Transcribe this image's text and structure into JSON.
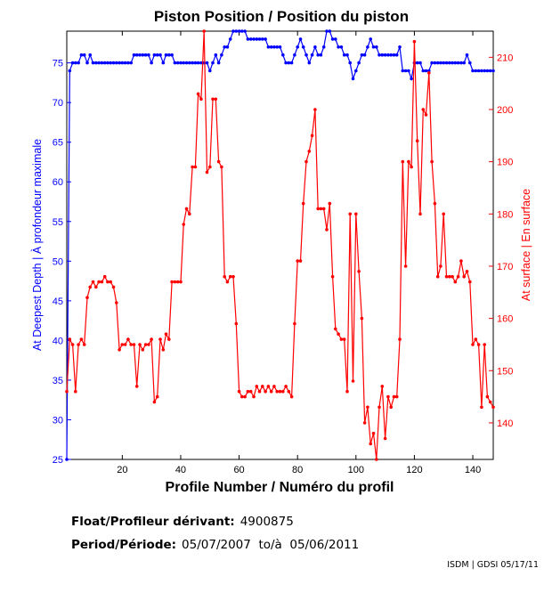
{
  "chart_data": {
    "type": "line",
    "title": "Piston Position / Position du piston",
    "xlabel": "Profile Number / Numéro du profil",
    "ylabel_left": "At Deepest Depth | À profondeur maximale",
    "ylabel_right": "At surface | En surface",
    "xlim": [
      1,
      147
    ],
    "ylim_left": [
      25,
      79
    ],
    "ylim_right": [
      133,
      215
    ],
    "x_ticks": [
      20,
      40,
      60,
      80,
      100,
      120,
      140
    ],
    "y_ticks_left": [
      25,
      30,
      35,
      40,
      45,
      50,
      55,
      60,
      65,
      70,
      75
    ],
    "y_ticks_right": [
      140,
      150,
      160,
      170,
      180,
      190,
      200,
      210
    ],
    "grid": false,
    "colors": {
      "left": "#0000ff",
      "right": "#ff0000"
    },
    "series": [
      {
        "axis": "left",
        "color": "#0000ff",
        "x": [
          1,
          2,
          3,
          4,
          5,
          6,
          7,
          8,
          9,
          10,
          11,
          12,
          13,
          14,
          15,
          16,
          17,
          18,
          19,
          20,
          21,
          22,
          23,
          24,
          25,
          26,
          27,
          28,
          29,
          30,
          31,
          32,
          33,
          34,
          35,
          36,
          37,
          38,
          39,
          40,
          41,
          42,
          43,
          44,
          45,
          46,
          47,
          48,
          49,
          50,
          51,
          52,
          53,
          54,
          55,
          56,
          57,
          58,
          59,
          60,
          61,
          62,
          63,
          64,
          65,
          66,
          67,
          68,
          69,
          70,
          71,
          72,
          73,
          74,
          75,
          76,
          77,
          78,
          79,
          80,
          81,
          82,
          83,
          84,
          85,
          86,
          87,
          88,
          89,
          90,
          91,
          92,
          93,
          94,
          95,
          96,
          97,
          98,
          99,
          100,
          101,
          102,
          103,
          104,
          105,
          106,
          107,
          108,
          109,
          110,
          111,
          112,
          113,
          114,
          115,
          116,
          117,
          118,
          119,
          120,
          121,
          122,
          123,
          124,
          125,
          126,
          127,
          128,
          129,
          130,
          131,
          132,
          133,
          134,
          135,
          136,
          137,
          138,
          139,
          140,
          141,
          142,
          143,
          144,
          145,
          146,
          147
        ],
        "values": [
          25,
          74,
          75,
          75,
          75,
          76,
          76,
          75,
          76,
          75,
          75,
          75,
          75,
          75,
          75,
          75,
          75,
          75,
          75,
          75,
          75,
          75,
          75,
          76,
          76,
          76,
          76,
          76,
          76,
          75,
          76,
          76,
          76,
          75,
          76,
          76,
          76,
          75,
          75,
          75,
          75,
          75,
          75,
          75,
          75,
          75,
          75,
          75,
          75,
          74,
          75,
          76,
          75,
          76,
          77,
          77,
          78,
          79,
          79,
          79,
          79,
          79,
          78,
          78,
          78,
          78,
          78,
          78,
          78,
          77,
          77,
          77,
          77,
          77,
          76,
          75,
          75,
          75,
          76,
          77,
          78,
          77,
          76,
          75,
          76,
          77,
          76,
          76,
          77,
          79,
          79,
          78,
          78,
          77,
          77,
          76,
          76,
          75,
          73,
          74,
          75,
          76,
          76,
          77,
          78,
          77,
          77,
          76,
          76,
          76,
          76,
          76,
          76,
          76,
          77,
          74,
          74,
          74,
          73,
          75,
          75,
          75,
          74,
          74,
          74,
          75,
          75,
          75,
          75,
          75,
          75,
          75,
          75,
          75,
          75,
          75,
          75,
          76,
          75,
          74,
          74,
          74,
          74,
          74,
          74,
          74,
          74
        ]
      },
      {
        "axis": "right",
        "color": "#ff0000",
        "x": [
          1,
          2,
          3,
          4,
          5,
          6,
          7,
          8,
          9,
          10,
          11,
          12,
          13,
          14,
          15,
          16,
          17,
          18,
          19,
          20,
          21,
          22,
          23,
          24,
          25,
          26,
          27,
          28,
          29,
          30,
          31,
          32,
          33,
          34,
          35,
          36,
          37,
          38,
          39,
          40,
          41,
          42,
          43,
          44,
          45,
          46,
          47,
          48,
          49,
          50,
          51,
          52,
          53,
          54,
          55,
          56,
          57,
          58,
          59,
          60,
          61,
          62,
          63,
          64,
          65,
          66,
          67,
          68,
          69,
          70,
          71,
          72,
          73,
          74,
          75,
          76,
          77,
          78,
          79,
          80,
          81,
          82,
          83,
          84,
          85,
          86,
          87,
          88,
          89,
          90,
          91,
          92,
          93,
          94,
          95,
          96,
          97,
          98,
          99,
          100,
          101,
          102,
          103,
          104,
          105,
          106,
          107,
          108,
          109,
          110,
          111,
          112,
          113,
          114,
          115,
          116,
          117,
          118,
          119,
          120,
          121,
          122,
          123,
          124,
          125,
          126,
          127,
          128,
          129,
          130,
          131,
          132,
          133,
          134,
          135,
          136,
          137,
          138,
          139,
          140,
          141,
          142,
          143,
          144,
          145,
          146,
          147
        ],
        "values": [
          146,
          156,
          155,
          146,
          155,
          156,
          155,
          164,
          166,
          167,
          166,
          167,
          167,
          168,
          167,
          167,
          166,
          163,
          154,
          155,
          155,
          156,
          155,
          155,
          147,
          155,
          154,
          155,
          155,
          156,
          144,
          145,
          156,
          154,
          157,
          156,
          167,
          167,
          167,
          167,
          178,
          181,
          180,
          189,
          189,
          203,
          202,
          215,
          188,
          189,
          202,
          202,
          190,
          189,
          168,
          167,
          168,
          168,
          159,
          146,
          145,
          145,
          146,
          146,
          145,
          147,
          146,
          147,
          146,
          147,
          146,
          147,
          146,
          146,
          146,
          147,
          146,
          145,
          159,
          171,
          171,
          182,
          190,
          192,
          195,
          200,
          181,
          181,
          181,
          177,
          182,
          168,
          158,
          157,
          156,
          156,
          146,
          180,
          148,
          180,
          169,
          160,
          140,
          143,
          136,
          138,
          133,
          143,
          147,
          137,
          145,
          143,
          145,
          145,
          156,
          190,
          170,
          190,
          189,
          213,
          194,
          180,
          200,
          199,
          207,
          190,
          182,
          168,
          170,
          180,
          168,
          168,
          168,
          167,
          168,
          171,
          168,
          169,
          167,
          155,
          156,
          155,
          143,
          155,
          145,
          144,
          143
        ]
      }
    ]
  },
  "info": {
    "float_label": "Float/Profileur dérivant:",
    "float_value": "4900875",
    "period_label": "Period/Période:",
    "period_value": "05/07/2007  to/à  05/06/2011"
  },
  "credit": "ISDM | GDSI 05/17/11"
}
